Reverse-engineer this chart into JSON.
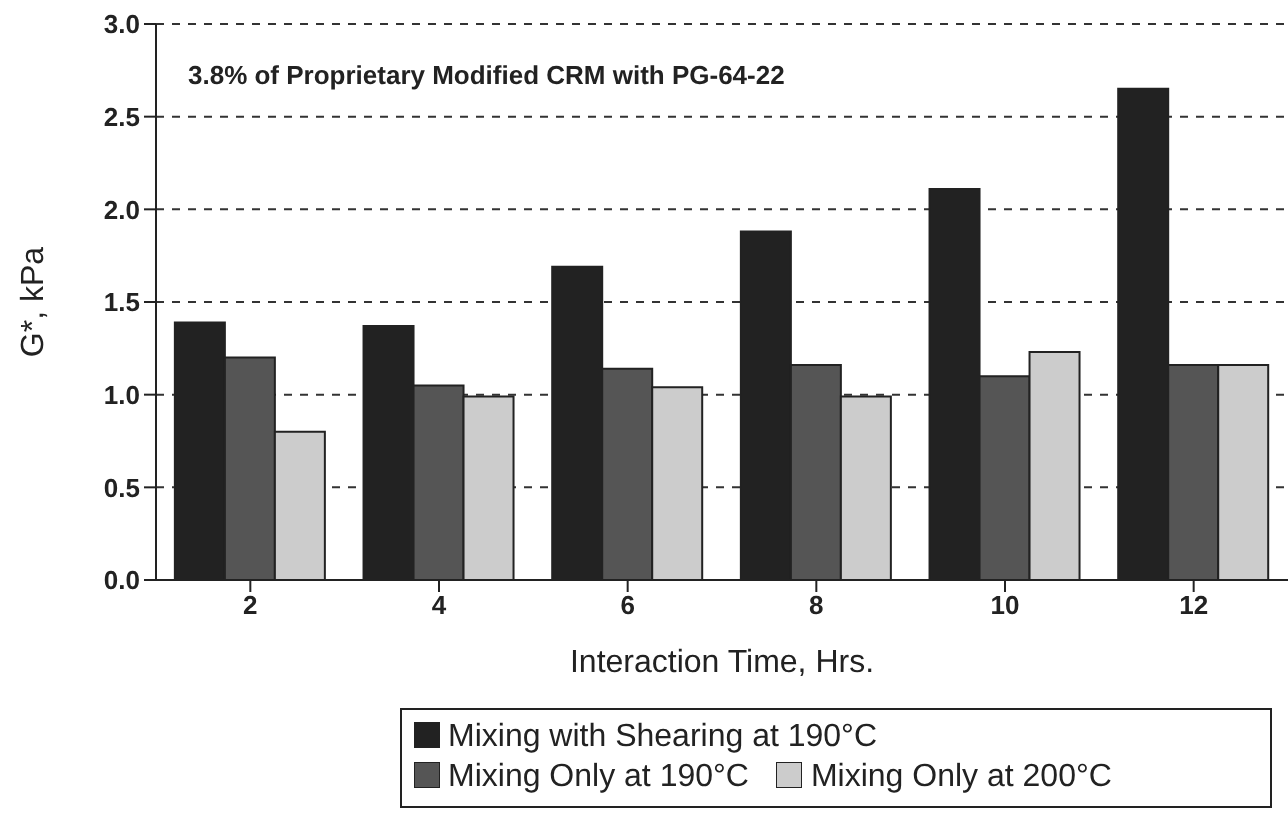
{
  "chart_data": {
    "type": "bar",
    "xlabel": "Interaction Time, Hrs.",
    "ylabel": "G*, kPa",
    "annotations": [
      "3.8% of Proprietary Modified CRM with PG-64-22"
    ],
    "categories": [
      "2",
      "4",
      "6",
      "8",
      "10",
      "12"
    ],
    "series": [
      {
        "name": "Mixing with Shearing at 190°C",
        "color": "#222222",
        "values": [
          1.39,
          1.37,
          1.69,
          1.88,
          2.11,
          2.65
        ]
      },
      {
        "name": "Mixing Only at 190°C",
        "color": "#555555",
        "values": [
          1.2,
          1.05,
          1.14,
          1.16,
          1.1,
          1.16
        ]
      },
      {
        "name": "Mixing Only at 200°C",
        "color": "#cccccc",
        "values": [
          0.8,
          0.99,
          1.04,
          0.99,
          1.23,
          1.16
        ]
      }
    ],
    "ylim": [
      0,
      3
    ],
    "yticks": [
      {
        "value": 0,
        "label": "0.0"
      },
      {
        "value": 0.5,
        "label": "0.5"
      },
      {
        "value": 1,
        "label": "1.0"
      },
      {
        "value": 1.5,
        "label": "1.5"
      },
      {
        "value": 2,
        "label": "2.0"
      },
      {
        "value": 2.5,
        "label": "2.5"
      },
      {
        "value": 3,
        "label": "3.0"
      }
    ],
    "grid": "y",
    "legend": "bottom"
  }
}
